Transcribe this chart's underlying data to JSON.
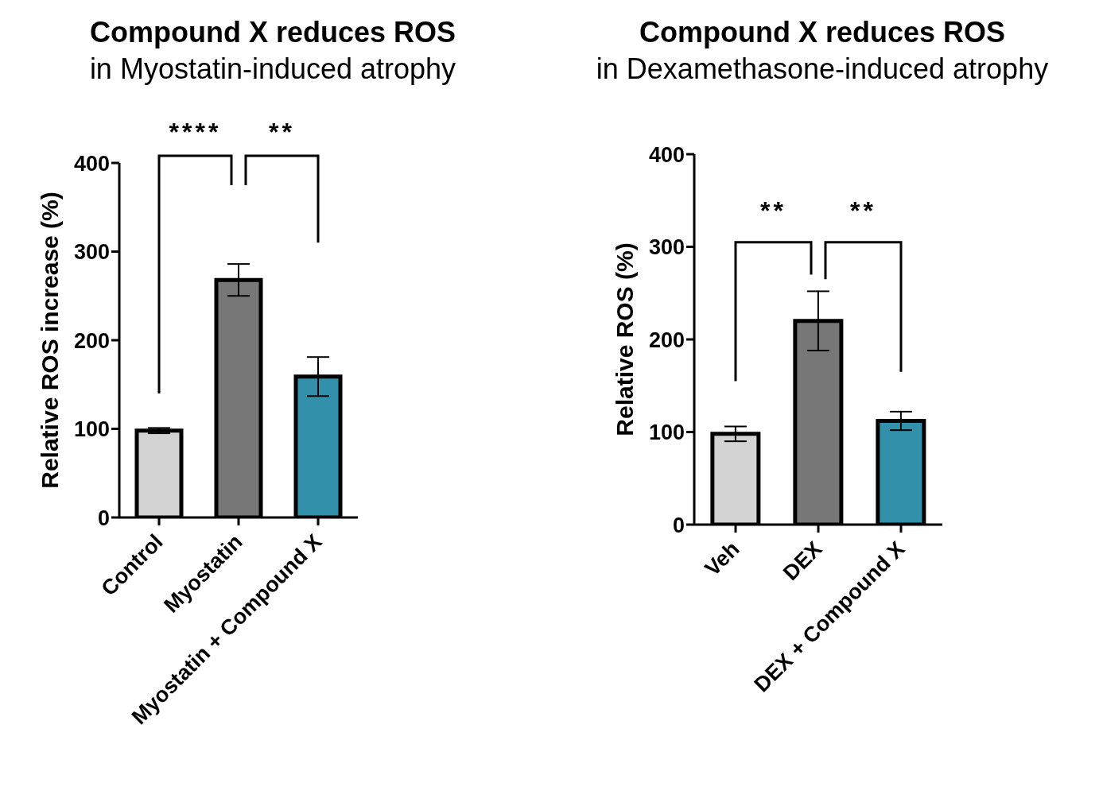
{
  "chart_data": [
    {
      "type": "bar",
      "title": "Compound X reduces ROS",
      "subtitle": "in Myostatin-induced atrophy",
      "ylabel": "Relative ROS increase (%)",
      "categories": [
        "Control",
        "Myostatin",
        "Myostatin + Compound X"
      ],
      "values": [
        98,
        268,
        159
      ],
      "errors": [
        3,
        18,
        22
      ],
      "colors": [
        "#d3d3d3",
        "#777777",
        "#3390aa"
      ],
      "ylim": [
        0,
        400
      ],
      "yticks": [
        0,
        100,
        200,
        300,
        400
      ],
      "annotations": [
        "****",
        "**"
      ]
    },
    {
      "type": "bar",
      "title": "Compound X reduces ROS",
      "subtitle": "in Dexamethasone-induced atrophy",
      "ylabel": "Relative ROS (%)",
      "categories": [
        "Veh",
        "DEX",
        "DEX + Compound X"
      ],
      "values": [
        98,
        220,
        112
      ],
      "errors": [
        8,
        32,
        10
      ],
      "colors": [
        "#d3d3d3",
        "#777777",
        "#3390aa"
      ],
      "ylim": [
        0,
        400
      ],
      "yticks": [
        0,
        100,
        200,
        300,
        400
      ],
      "annotations": [
        "**",
        "**"
      ]
    }
  ]
}
